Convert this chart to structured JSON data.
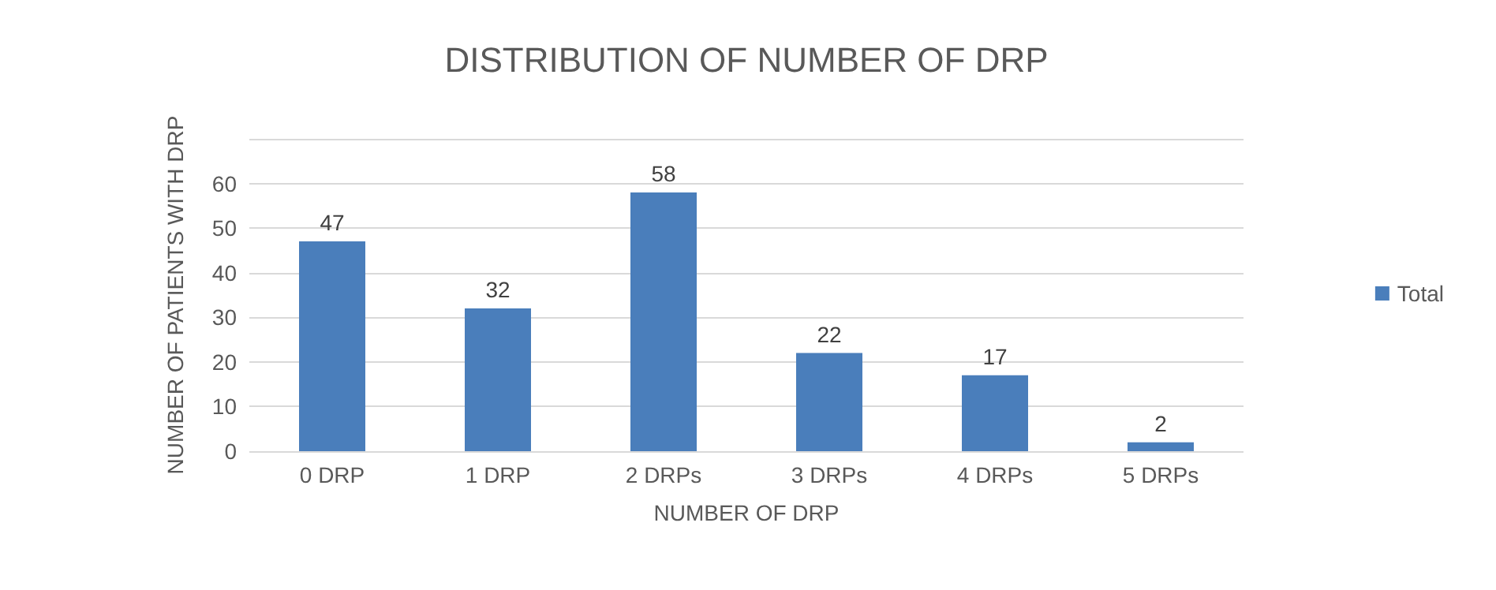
{
  "chart_data": {
    "type": "bar",
    "title": "DISTRIBUTION OF NUMBER OF DRP",
    "xlabel": "NUMBER OF DRP",
    "ylabel": "NUMBER OF PATIENTS WITH DRP",
    "categories": [
      "0 DRP",
      "1 DRP",
      "2 DRPs",
      "3 DRPs",
      "4 DRPs",
      "5 DRPs"
    ],
    "series": [
      {
        "name": "Total",
        "color": "#4a7ebb",
        "values": [
          47,
          32,
          58,
          22,
          17,
          2
        ]
      }
    ],
    "ylim": [
      0,
      70
    ],
    "yticks": [
      0,
      10,
      20,
      30,
      40,
      50,
      60,
      {
        "value": 70,
        "label": null
      }
    ],
    "grid": "y",
    "legend": "right",
    "data_labels": true
  }
}
